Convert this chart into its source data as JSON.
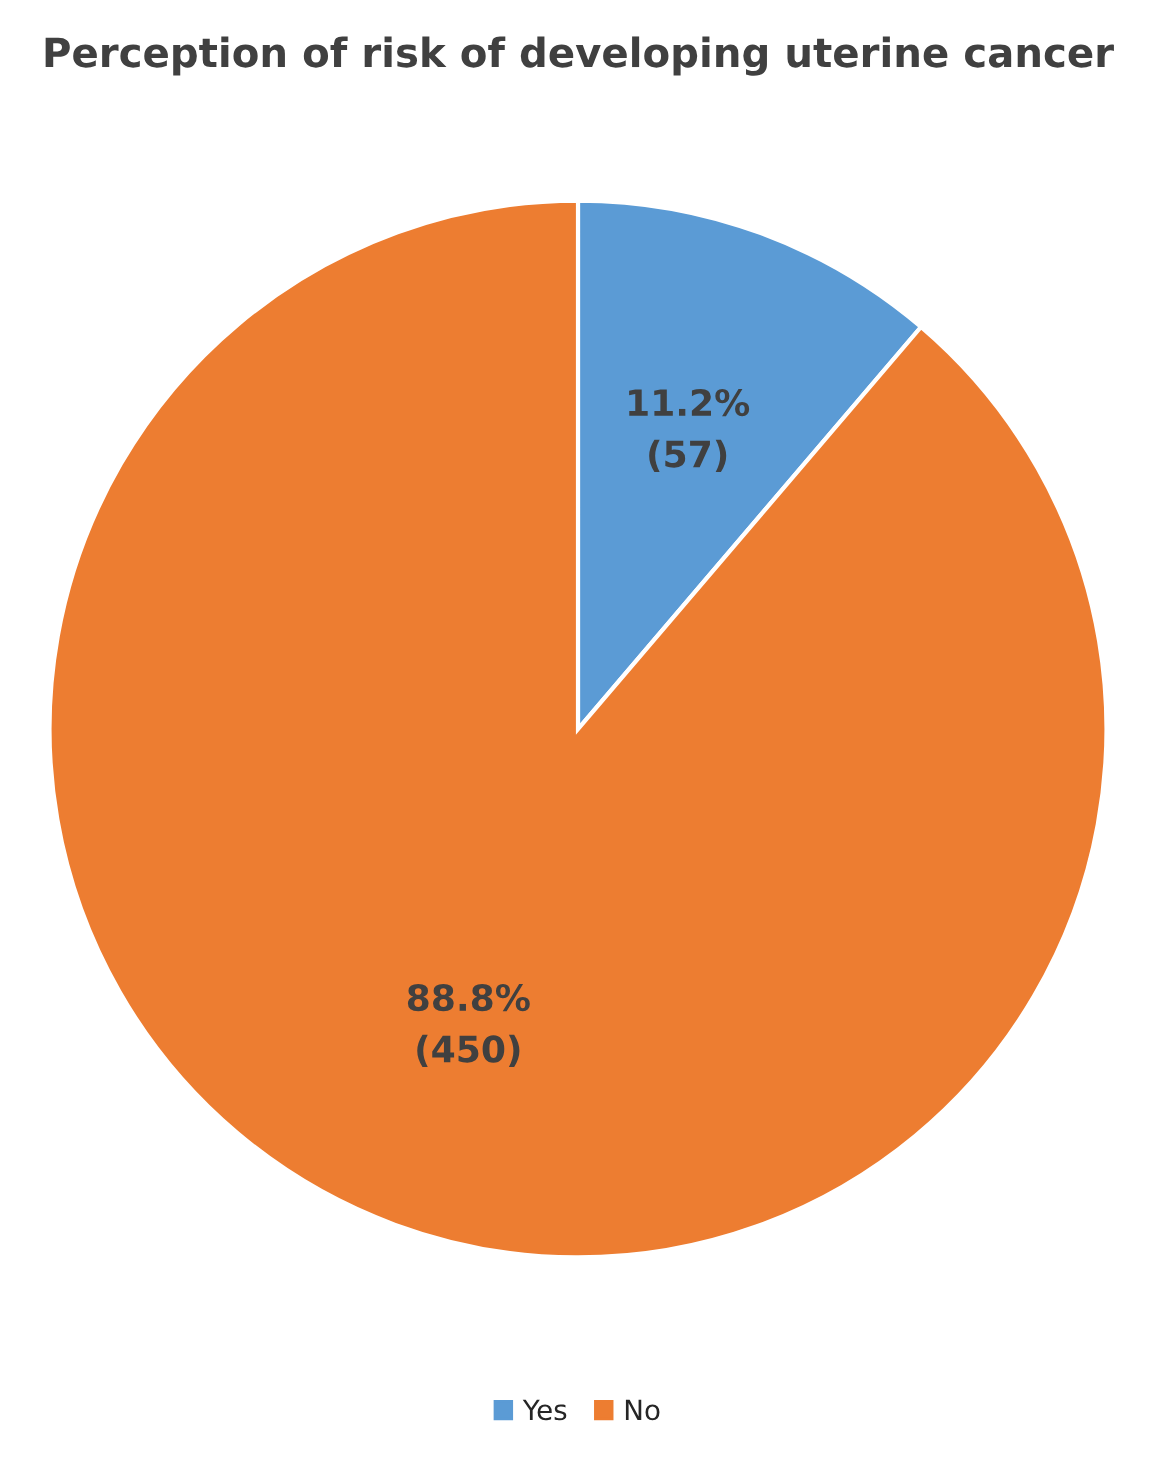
{
  "chart_data": {
    "type": "pie",
    "title": "Perception of risk of developing uterine cancer",
    "categories": [
      "Yes",
      "No"
    ],
    "values": [
      57,
      450
    ],
    "colors": [
      "#5b9bd5",
      "#ed7d31"
    ],
    "value_labels": [
      "11.2%\n(57)",
      "88.8%\n(450)"
    ],
    "legend": "bottom"
  }
}
